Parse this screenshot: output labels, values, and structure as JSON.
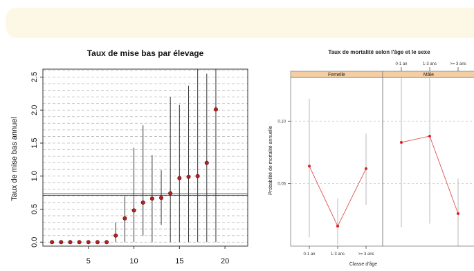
{
  "chart_data": [
    {
      "type": "scatter",
      "title": "Taux de mise bas par élevage",
      "ylabel": "Taux de mise bas annuel",
      "xlabel": "",
      "xlim": [
        0,
        22.5
      ],
      "ylim": [
        -0.06,
        2.62
      ],
      "x_ticks": [
        5,
        10,
        15,
        20
      ],
      "y_ticks": [
        0.0,
        0.5,
        1.0,
        1.5,
        2.0,
        2.5
      ],
      "y_tick_labels": [
        "0.0",
        "0.5",
        "1.0",
        "1.5",
        "2.0",
        "2.5"
      ],
      "grid": "dashed horizontal",
      "reference_line": 0.72,
      "point_color": "#b22222",
      "points": [
        {
          "x": 1,
          "y": 0.0,
          "lo": null,
          "hi": null
        },
        {
          "x": 2,
          "y": 0.0,
          "lo": null,
          "hi": null
        },
        {
          "x": 3,
          "y": 0.0,
          "lo": null,
          "hi": null
        },
        {
          "x": 4,
          "y": 0.0,
          "lo": null,
          "hi": null
        },
        {
          "x": 5,
          "y": 0.0,
          "lo": null,
          "hi": null
        },
        {
          "x": 6,
          "y": 0.0,
          "lo": null,
          "hi": null
        },
        {
          "x": 7,
          "y": 0.0,
          "lo": null,
          "hi": null
        },
        {
          "x": 8,
          "y": 0.1,
          "lo": 0.0,
          "hi": 0.3
        },
        {
          "x": 9,
          "y": 0.36,
          "lo": 0.0,
          "hi": 0.7
        },
        {
          "x": 10,
          "y": 0.48,
          "lo": 0.0,
          "hi": 1.43
        },
        {
          "x": 11,
          "y": 0.6,
          "lo": 0.1,
          "hi": 1.77
        },
        {
          "x": 12,
          "y": 0.66,
          "lo": 0.0,
          "hi": 1.32
        },
        {
          "x": 13,
          "y": 0.67,
          "lo": 0.26,
          "hi": 1.09
        },
        {
          "x": 14,
          "y": 0.74,
          "lo": 0.0,
          "hi": 2.2
        },
        {
          "x": 15,
          "y": 0.97,
          "lo": 0.0,
          "hi": 2.08
        },
        {
          "x": 16,
          "y": 0.99,
          "lo": 0.0,
          "hi": 2.37
        },
        {
          "x": 17,
          "y": 1.0,
          "lo": 0.0,
          "hi": 2.62
        },
        {
          "x": 18,
          "y": 1.2,
          "lo": 0.0,
          "hi": 2.55
        },
        {
          "x": 19,
          "y": 2.01,
          "lo": 0.0,
          "hi": 2.62
        }
      ]
    },
    {
      "type": "line",
      "title": "Taux de mortalité selon l'âge et le sexe",
      "xlabel": "Classe d'âge",
      "ylabel": "Probabilité de mortalité annuelle",
      "categories": [
        "0-1 an",
        "1-3 ans",
        ">= 3 ans"
      ],
      "y_ticks": [
        0.05,
        0.1
      ],
      "y_tick_labels": [
        "0.05",
        "0.10"
      ],
      "ylim": [
        0.0,
        0.135
      ],
      "grid": "dashed horizontal",
      "point_color": "#d62728",
      "line_color": "#e06060",
      "panels": [
        {
          "strip": "Femelle",
          "values": [
            0.064,
            0.016,
            0.062
          ],
          "lo": [
            0.007,
            0.001,
            0.033
          ],
          "hi": [
            0.118,
            0.038,
            0.09
          ]
        },
        {
          "strip": "Mâle",
          "values": [
            0.083,
            0.088,
            0.026
          ],
          "lo": [
            0.015,
            0.018,
            0.0
          ],
          "hi": [
            0.146,
            0.168,
            0.054
          ]
        }
      ]
    }
  ]
}
